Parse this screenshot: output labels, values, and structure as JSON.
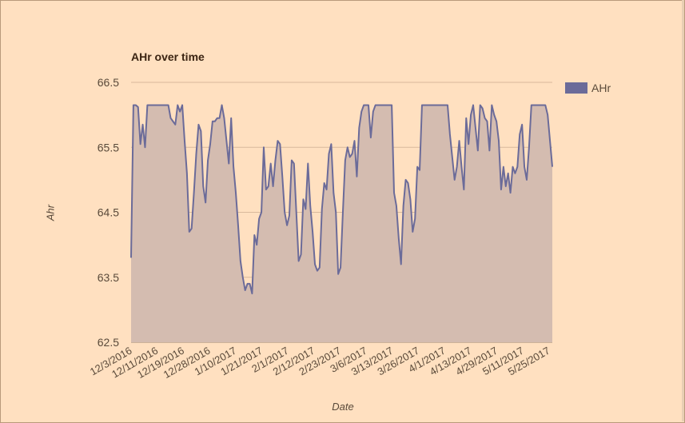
{
  "chart_data": {
    "type": "area",
    "title": "AHr over time",
    "xlabel": "Date",
    "ylabel": "Ahr",
    "ylim": [
      62.5,
      66.5
    ],
    "y_ticks": [
      "62.5",
      "63.5",
      "64.5",
      "65.5",
      "66.5"
    ],
    "x_ticks": [
      "12/3/2016",
      "12/11/2016",
      "12/19/2016",
      "12/28/2016",
      "1/10/2017",
      "1/21/2017",
      "2/1/2017",
      "2/12/2017",
      "2/23/2017",
      "3/6/2017",
      "3/13/2017",
      "3/26/2017",
      "4/1/2017",
      "4/13/2017",
      "4/29/2017",
      "5/11/2017",
      "5/25/2017"
    ],
    "legend_position": "right",
    "grid": true,
    "series": [
      {
        "name": "AHr",
        "color": "#6b6b99",
        "fill": "#d4bcb0",
        "values": [
          63.8,
          66.15,
          66.15,
          66.12,
          65.55,
          65.85,
          65.5,
          66.15,
          66.15,
          66.15,
          66.15,
          66.15,
          66.15,
          66.15,
          66.15,
          66.15,
          66.15,
          65.95,
          65.9,
          65.85,
          66.15,
          66.05,
          66.15,
          65.6,
          65.1,
          64.2,
          64.25,
          64.8,
          65.4,
          65.85,
          65.75,
          64.9,
          64.65,
          65.3,
          65.55,
          65.9,
          65.9,
          65.95,
          65.95,
          66.15,
          65.95,
          65.6,
          65.25,
          65.95,
          65.2,
          64.8,
          64.3,
          63.75,
          63.5,
          63.3,
          63.4,
          63.4,
          63.25,
          64.15,
          64.0,
          64.4,
          64.5,
          65.5,
          64.85,
          64.9,
          65.25,
          64.9,
          65.3,
          65.6,
          65.55,
          65.05,
          64.5,
          64.3,
          64.45,
          65.3,
          65.25,
          64.5,
          63.75,
          63.85,
          64.7,
          64.55,
          65.25,
          64.6,
          64.2,
          63.7,
          63.6,
          63.65,
          64.55,
          64.95,
          64.85,
          65.4,
          65.55,
          64.8,
          64.5,
          63.55,
          63.65,
          64.5,
          65.3,
          65.5,
          65.35,
          65.4,
          65.6,
          65.05,
          65.8,
          66.05,
          66.15,
          66.15,
          66.15,
          65.65,
          66.05,
          66.15,
          66.15,
          66.15,
          66.15,
          66.15,
          66.15,
          66.15,
          66.15,
          64.8,
          64.6,
          64.1,
          63.7,
          64.6,
          65.0,
          64.95,
          64.7,
          64.2,
          64.4,
          65.2,
          65.15,
          66.15,
          66.15,
          66.15,
          66.15,
          66.15,
          66.15,
          66.15,
          66.15,
          66.15,
          66.15,
          66.15,
          66.15,
          65.7,
          65.35,
          65.0,
          65.2,
          65.6,
          65.2,
          64.85,
          65.95,
          65.55,
          66.0,
          66.15,
          65.8,
          65.45,
          66.15,
          66.1,
          65.95,
          65.9,
          65.45,
          66.15,
          66.0,
          65.9,
          65.6,
          64.85,
          65.2,
          64.9,
          65.1,
          64.8,
          65.2,
          65.1,
          65.2,
          65.7,
          65.85,
          65.2,
          65.0,
          65.5,
          66.15,
          66.15,
          66.15,
          66.15,
          66.15,
          66.15,
          66.15,
          66.0,
          65.6,
          65.2
        ]
      }
    ]
  }
}
